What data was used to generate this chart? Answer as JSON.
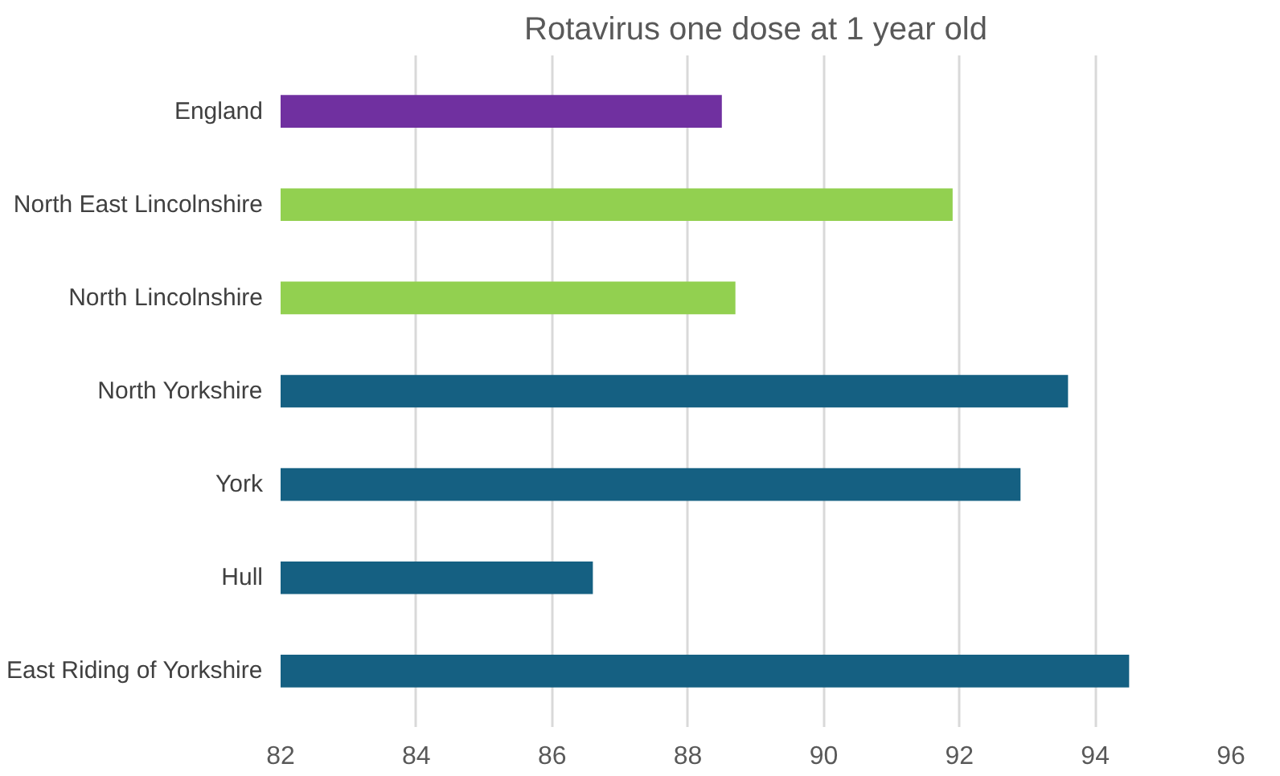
{
  "chart_data": {
    "type": "bar",
    "orientation": "horizontal",
    "title": "Rotavirus one dose at 1 year old",
    "categories": [
      "England",
      "North East Lincolnshire",
      "North Lincolnshire",
      "North Yorkshire",
      "York",
      "Hull",
      "East Riding of Yorkshire"
    ],
    "values": [
      88.5,
      91.9,
      88.7,
      93.6,
      92.9,
      86.6,
      94.5
    ],
    "colors": [
      "#7030a0",
      "#92d050",
      "#92d050",
      "#156082",
      "#156082",
      "#156082",
      "#156082"
    ],
    "xlim": [
      82,
      96
    ],
    "xticks": [
      82,
      84,
      86,
      88,
      90,
      92,
      94,
      96
    ],
    "grid": "x"
  }
}
